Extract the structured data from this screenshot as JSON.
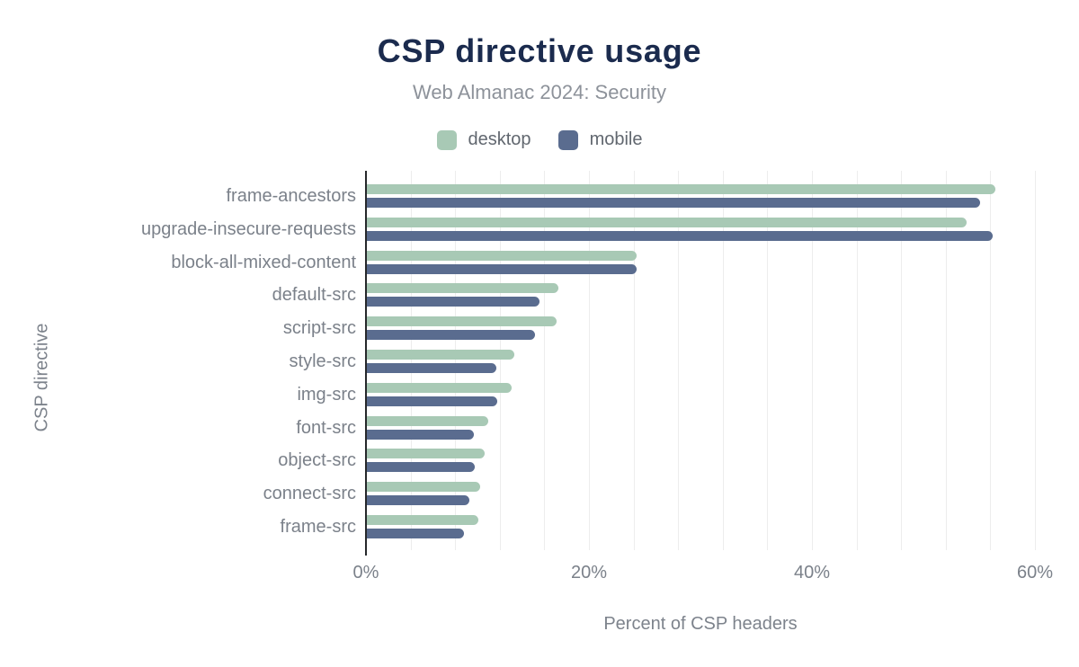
{
  "chart_data": {
    "type": "bar",
    "orientation": "horizontal",
    "title": "CSP directive usage",
    "subtitle": "Web Almanac 2024: Security",
    "xlabel": "Percent of CSP headers",
    "ylabel": "CSP directive",
    "xlim": [
      0,
      60
    ],
    "x_ticks": [
      0,
      20,
      40,
      60
    ],
    "x_tick_labels": [
      "0%",
      "20%",
      "40%",
      "60%"
    ],
    "grid": "vertical",
    "grid_step_pct": 4,
    "legend_position": "top",
    "categories": [
      "frame-ancestors",
      "upgrade-insecure-requests",
      "block-all-mixed-content",
      "default-src",
      "script-src",
      "style-src",
      "img-src",
      "font-src",
      "object-src",
      "connect-src",
      "frame-src"
    ],
    "series": [
      {
        "name": "desktop",
        "color": "#a8c9b5",
        "values": [
          56.4,
          53.8,
          24.2,
          17.2,
          17.0,
          13.2,
          13.0,
          10.9,
          10.6,
          10.2,
          10.0
        ]
      },
      {
        "name": "mobile",
        "color": "#5a6c8f",
        "values": [
          55.0,
          56.1,
          24.2,
          15.5,
          15.1,
          11.6,
          11.7,
          9.6,
          9.7,
          9.2,
          8.7
        ]
      }
    ]
  },
  "colors": {
    "title": "#1b2b4e",
    "subtitle": "#8d929a",
    "axis_labels": "#7b818a",
    "axis_line": "#26282b",
    "gridline": "#ededed",
    "background": "#ffffff"
  }
}
